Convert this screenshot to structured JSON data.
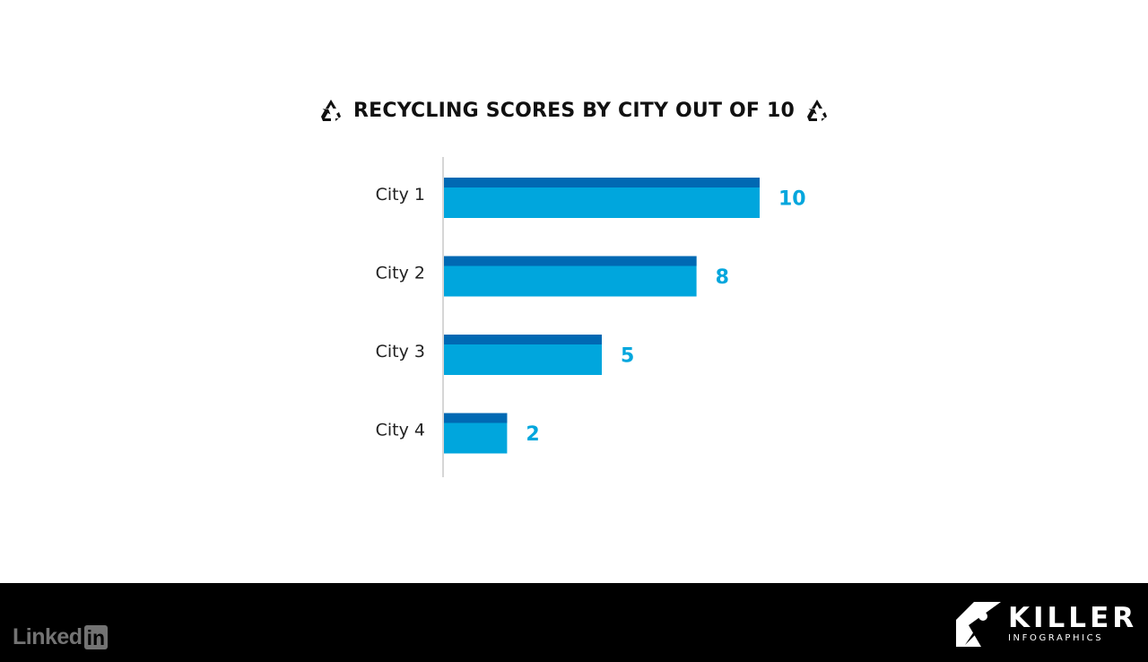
{
  "chart_data": {
    "type": "bar",
    "orientation": "horizontal",
    "title": "RECYCLING SCORES BY CITY OUT OF 10",
    "categories": [
      "City 1",
      "City 2",
      "City 3",
      "City 4"
    ],
    "values": [
      10,
      8,
      5,
      2
    ],
    "value_labels": [
      "10",
      "8",
      "5",
      "2"
    ],
    "xlim": [
      0,
      10
    ],
    "grid": false,
    "colors": {
      "bar_main": "#00a6dd",
      "bar_top": "#0069b3",
      "value_label": "#00a6dd",
      "axis_line": "#c8c8c8",
      "category_label": "#222222"
    }
  },
  "icons": {
    "title_left": "recycle-icon",
    "title_right": "recycle-icon"
  },
  "footer": {
    "linkedin_text": "Linked",
    "linkedin_box": "in",
    "brand_main": "KILLER",
    "brand_sub": "INFOGRAPHICS",
    "brand_icon": "killer-logo-mark"
  }
}
